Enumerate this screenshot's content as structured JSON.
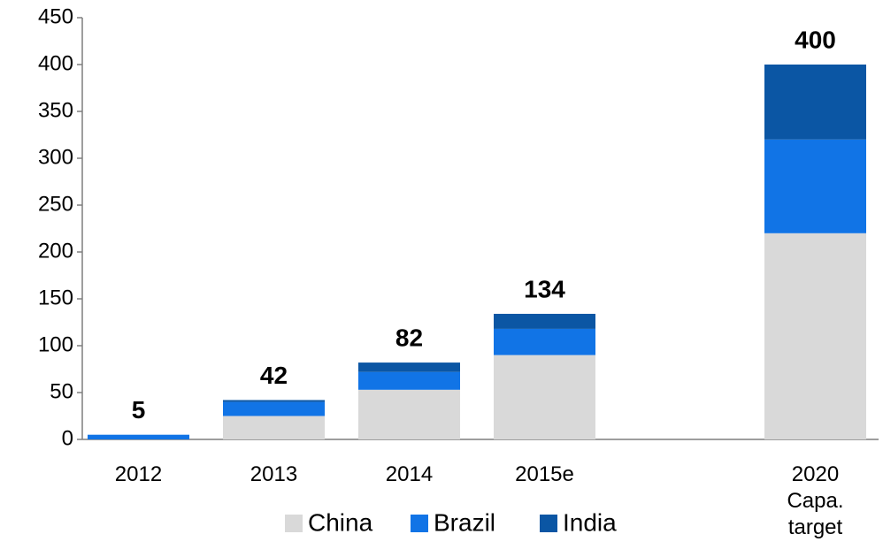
{
  "chart_data": {
    "type": "stacked_bar",
    "categories": [
      "2012",
      "2013",
      "2014",
      "2015e",
      null,
      "2020\nCapa.\ntarget"
    ],
    "series": [
      {
        "name": "China",
        "color": "#d9d9d9",
        "values": [
          0,
          25,
          53,
          90,
          null,
          220
        ]
      },
      {
        "name": "Brazil",
        "color": "#1174e6",
        "values": [
          5,
          15,
          19,
          28,
          null,
          100
        ]
      },
      {
        "name": "India",
        "color": "#0b56a4",
        "values": [
          0,
          2,
          10,
          16,
          null,
          80
        ]
      }
    ],
    "totals": [
      5,
      42,
      82,
      134,
      null,
      400
    ],
    "ylim": [
      0,
      450
    ],
    "yticks": [
      0,
      50,
      100,
      150,
      200,
      250,
      300,
      350,
      400,
      450
    ],
    "grid": false,
    "legend": "bottom"
  }
}
